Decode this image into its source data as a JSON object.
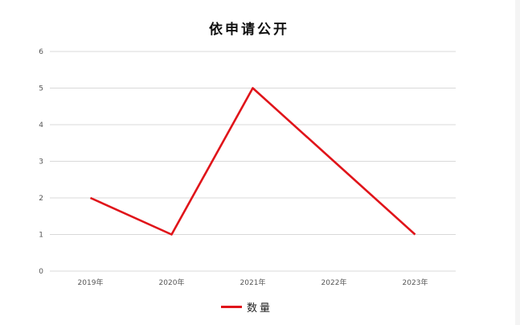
{
  "chart_data": {
    "type": "line",
    "title": "依申请公开",
    "categories": [
      "2019年",
      "2020年",
      "2021年",
      "2022年",
      "2023年"
    ],
    "series": [
      {
        "name": "数量",
        "values": [
          2,
          1,
          5,
          3,
          1
        ],
        "color": "#e0141a"
      }
    ],
    "yticks": [
      "0",
      "1",
      "2",
      "3",
      "4",
      "5",
      "6"
    ],
    "ylim": [
      0,
      6
    ],
    "grid": true,
    "legend": "bottom"
  }
}
